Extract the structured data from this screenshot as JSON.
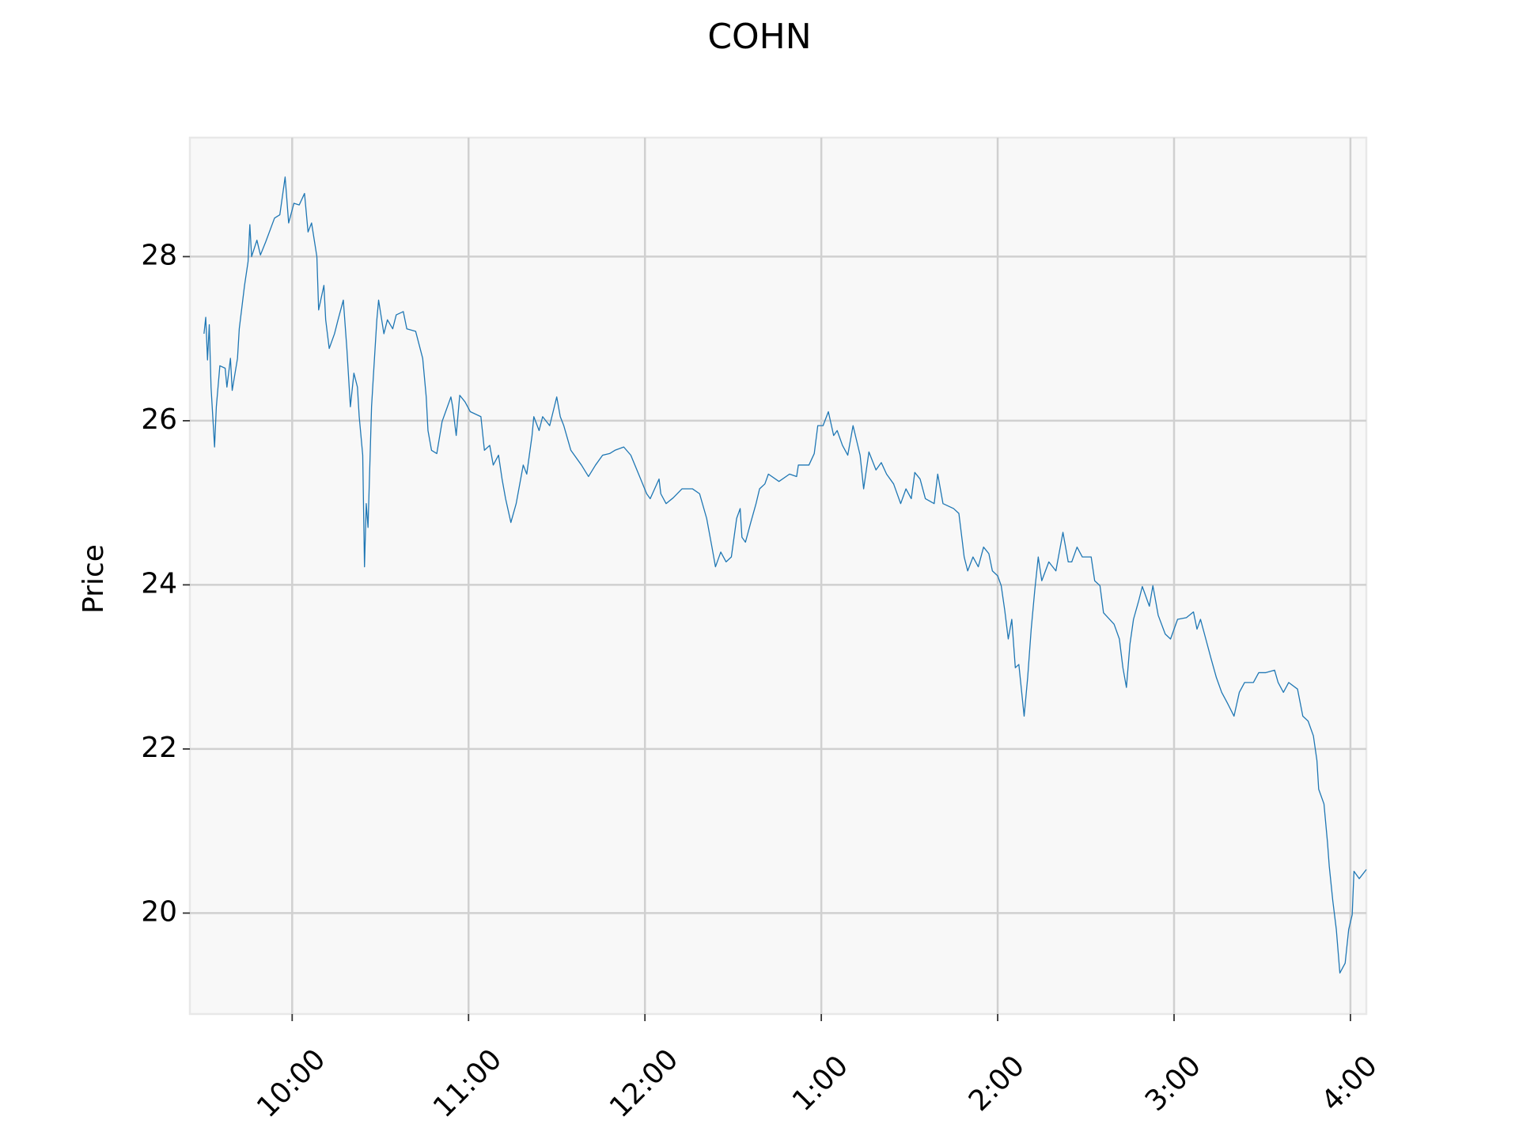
{
  "chart_data": {
    "type": "line",
    "title": "COHN",
    "ylabel": "Price",
    "color": "#1f77b4",
    "grid": true,
    "xlim": [
      9.42,
      16.09
    ],
    "ylim": [
      18.77,
      29.45
    ],
    "xticks": [
      {
        "value": 10,
        "label": "10:00"
      },
      {
        "value": 11,
        "label": "11:00"
      },
      {
        "value": 12,
        "label": "12:00"
      },
      {
        "value": 13,
        "label": "1:00"
      },
      {
        "value": 14,
        "label": "2:00"
      },
      {
        "value": 15,
        "label": "3:00"
      },
      {
        "value": 16,
        "label": "4:00"
      }
    ],
    "yticks": [
      20,
      22,
      24,
      26,
      28
    ],
    "x": [
      9.5,
      9.51,
      9.52,
      9.53,
      9.54,
      9.56,
      9.57,
      9.59,
      9.62,
      9.63,
      9.65,
      9.66,
      9.69,
      9.7,
      9.73,
      9.75,
      9.76,
      9.77,
      9.8,
      9.82,
      9.85,
      9.9,
      9.93,
      9.96,
      9.98,
      10.01,
      10.04,
      10.07,
      10.09,
      10.11,
      10.14,
      10.15,
      10.18,
      10.19,
      10.21,
      10.24,
      10.26,
      10.29,
      10.31,
      10.33,
      10.35,
      10.37,
      10.38,
      10.4,
      10.41,
      10.42,
      10.43,
      10.45,
      10.46,
      10.48,
      10.49,
      10.52,
      10.54,
      10.57,
      10.59,
      10.63,
      10.65,
      10.7,
      10.74,
      10.76,
      10.77,
      10.79,
      10.82,
      10.85,
      10.87,
      10.9,
      10.91,
      10.93,
      10.95,
      10.98,
      11.01,
      11.07,
      11.09,
      11.12,
      11.14,
      11.17,
      11.19,
      11.21,
      11.24,
      11.27,
      11.31,
      11.33,
      11.36,
      11.37,
      11.4,
      11.42,
      11.46,
      11.5,
      11.52,
      11.54,
      11.58,
      11.64,
      11.68,
      11.72,
      11.76,
      11.8,
      11.83,
      11.88,
      11.92,
      11.97,
      12.01,
      12.03,
      12.08,
      12.09,
      12.12,
      12.16,
      12.21,
      12.27,
      12.31,
      12.35,
      12.38,
      12.4,
      12.43,
      12.46,
      12.49,
      12.52,
      12.54,
      12.55,
      12.57,
      12.6,
      12.63,
      12.65,
      12.68,
      12.7,
      12.76,
      12.82,
      12.86,
      12.87,
      12.93,
      12.96,
      12.98,
      13.01,
      13.04,
      13.07,
      13.09,
      13.12,
      13.15,
      13.18,
      13.22,
      13.24,
      13.27,
      13.31,
      13.34,
      13.37,
      13.41,
      13.45,
      13.48,
      13.51,
      13.53,
      13.56,
      13.59,
      13.64,
      13.66,
      13.69,
      13.75,
      13.78,
      13.8,
      13.81,
      13.83,
      13.86,
      13.89,
      13.92,
      13.95,
      13.97,
      14.0,
      14.02,
      14.04,
      14.06,
      14.08,
      14.1,
      14.12,
      14.15,
      14.17,
      14.19,
      14.21,
      14.23,
      14.25,
      14.29,
      14.33,
      14.37,
      14.4,
      14.42,
      14.45,
      14.48,
      14.53,
      14.55,
      14.58,
      14.6,
      14.66,
      14.69,
      14.71,
      14.73,
      14.75,
      14.77,
      14.8,
      14.82,
      14.86,
      14.88,
      14.91,
      14.95,
      14.98,
      15.02,
      15.07,
      15.11,
      15.13,
      15.15,
      15.18,
      15.21,
      15.24,
      15.27,
      15.3,
      15.34,
      15.37,
      15.4,
      15.45,
      15.48,
      15.52,
      15.57,
      15.59,
      15.62,
      15.65,
      15.7,
      15.73,
      15.76,
      15.79,
      15.81,
      15.82,
      15.85,
      15.87,
      15.88,
      15.9,
      15.92,
      15.94,
      15.97,
      15.99,
      16.01,
      16.02,
      16.05,
      16.09
    ],
    "values": [
      27.06,
      27.26,
      26.74,
      27.17,
      26.41,
      25.68,
      26.17,
      26.67,
      26.64,
      26.41,
      26.76,
      26.37,
      26.76,
      27.12,
      27.65,
      27.94,
      28.39,
      28.0,
      28.2,
      28.02,
      28.18,
      28.47,
      28.51,
      28.97,
      28.41,
      28.65,
      28.63,
      28.77,
      28.3,
      28.41,
      28.0,
      27.35,
      27.65,
      27.23,
      26.88,
      27.06,
      27.23,
      27.47,
      26.88,
      26.17,
      26.58,
      26.41,
      26.05,
      25.58,
      24.22,
      24.99,
      24.7,
      26.17,
      26.53,
      27.23,
      27.47,
      27.06,
      27.23,
      27.12,
      27.29,
      27.33,
      27.12,
      27.09,
      26.76,
      26.29,
      25.88,
      25.64,
      25.6,
      25.99,
      26.11,
      26.29,
      26.17,
      25.82,
      26.31,
      26.23,
      26.11,
      26.05,
      25.64,
      25.7,
      25.46,
      25.58,
      25.29,
      25.05,
      24.76,
      24.99,
      25.46,
      25.35,
      25.82,
      26.05,
      25.88,
      26.05,
      25.94,
      26.29,
      26.05,
      25.94,
      25.64,
      25.46,
      25.32,
      25.46,
      25.58,
      25.6,
      25.64,
      25.68,
      25.58,
      25.32,
      25.11,
      25.05,
      25.29,
      25.11,
      24.99,
      25.06,
      25.17,
      25.17,
      25.11,
      24.81,
      24.46,
      24.22,
      24.4,
      24.28,
      24.34,
      24.81,
      24.93,
      24.58,
      24.52,
      24.76,
      24.99,
      25.17,
      25.23,
      25.35,
      25.26,
      25.35,
      25.32,
      25.46,
      25.46,
      25.6,
      25.94,
      25.94,
      26.11,
      25.82,
      25.88,
      25.7,
      25.58,
      25.94,
      25.58,
      25.17,
      25.62,
      25.4,
      25.49,
      25.35,
      25.23,
      24.99,
      25.17,
      25.05,
      25.37,
      25.29,
      25.05,
      24.99,
      25.35,
      24.99,
      24.93,
      24.87,
      24.52,
      24.34,
      24.17,
      24.34,
      24.22,
      24.46,
      24.38,
      24.17,
      24.11,
      23.99,
      23.69,
      23.34,
      23.58,
      22.99,
      23.03,
      22.4,
      22.87,
      23.46,
      23.93,
      24.34,
      24.05,
      24.28,
      24.17,
      24.64,
      24.28,
      24.28,
      24.46,
      24.34,
      24.34,
      24.05,
      23.99,
      23.66,
      23.52,
      23.34,
      22.99,
      22.75,
      23.28,
      23.58,
      23.81,
      23.98,
      23.74,
      23.99,
      23.63,
      23.4,
      23.34,
      23.58,
      23.6,
      23.67,
      23.46,
      23.58,
      23.34,
      23.1,
      22.87,
      22.69,
      22.57,
      22.4,
      22.69,
      22.81,
      22.81,
      22.93,
      22.93,
      22.96,
      22.81,
      22.69,
      22.81,
      22.73,
      22.4,
      22.34,
      22.16,
      21.86,
      21.51,
      21.33,
      20.86,
      20.57,
      20.15,
      19.8,
      19.27,
      19.39,
      19.8,
      19.98,
      20.51,
      20.42,
      20.53
    ]
  }
}
